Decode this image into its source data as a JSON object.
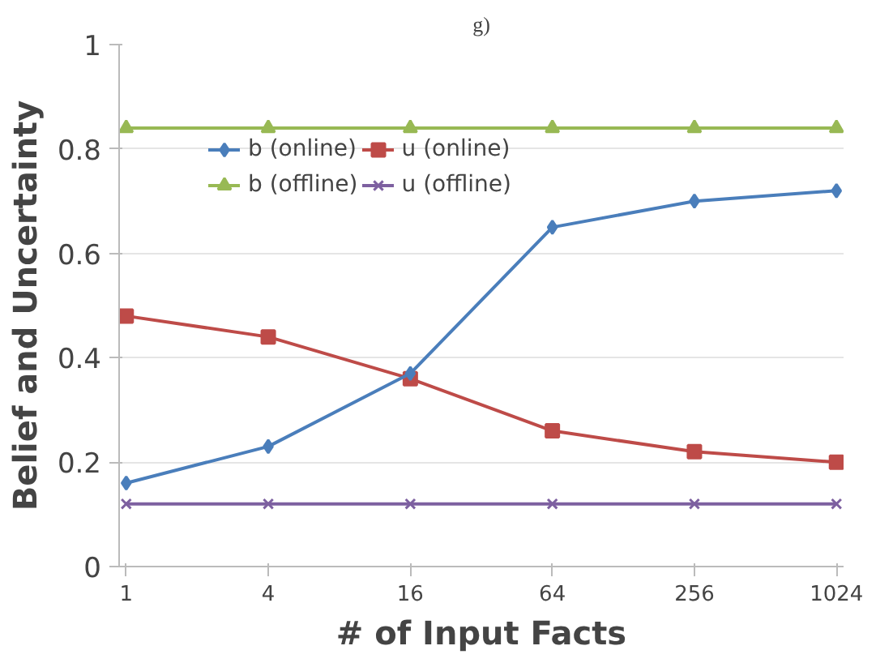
{
  "chart_data": {
    "type": "line",
    "title": "g)",
    "xlabel": "# of Input Facts",
    "ylabel": "Belief and Uncertainty",
    "categories": [
      "1",
      "4",
      "16",
      "64",
      "256",
      "1024"
    ],
    "series": [
      {
        "name": "b (online)",
        "color": "#4a7ebb",
        "marker": "diamond",
        "values": [
          0.16,
          0.23,
          0.37,
          0.65,
          0.7,
          0.72
        ]
      },
      {
        "name": "u (online)",
        "color": "#be4b48",
        "marker": "square",
        "values": [
          0.48,
          0.44,
          0.36,
          0.26,
          0.22,
          0.2
        ]
      },
      {
        "name": "b (offline)",
        "color": "#98b954",
        "marker": "triangle",
        "values": [
          0.84,
          0.84,
          0.84,
          0.84,
          0.84,
          0.84
        ]
      },
      {
        "name": "u (offline)",
        "color": "#7d60a0",
        "marker": "cross",
        "values": [
          0.12,
          0.12,
          0.12,
          0.12,
          0.12,
          0.12
        ]
      }
    ],
    "ylim": [
      0,
      1
    ],
    "yticks": [
      0,
      0.2,
      0.4,
      0.6,
      0.8,
      1
    ],
    "grid": "y",
    "legend": "top left",
    "line_style": "solid"
  }
}
